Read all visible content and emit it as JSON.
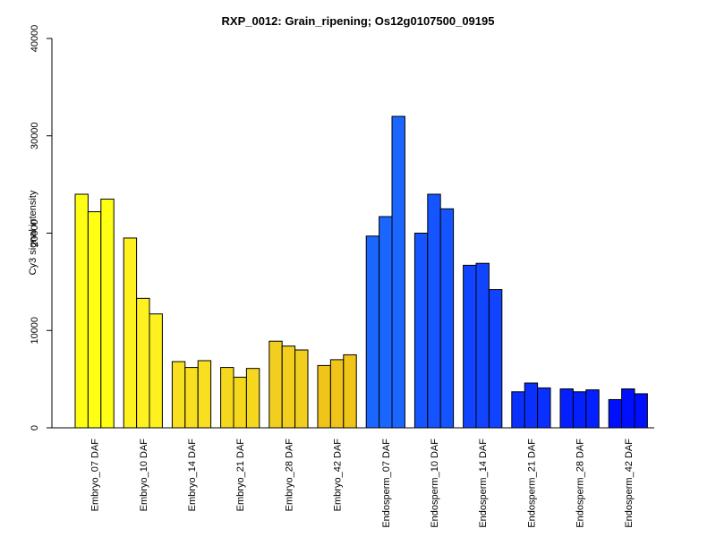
{
  "chart_data": {
    "type": "bar",
    "title": "RXP_0012: Grain_ripening; Os12g0107500_09195",
    "xlabel": "",
    "ylabel": "Cy3 signal intensity",
    "ylim": [
      0,
      40000
    ],
    "yticks": [
      "0",
      "10000",
      "20000",
      "30000",
      "40000"
    ],
    "grid": false,
    "legend": "none",
    "categories": [
      "Embryo_07 DAF",
      "Embryo_10 DAF",
      "Embryo_14 DAF",
      "Embryo_21 DAF",
      "Embryo_28 DAF",
      "Embryo_42 DAF",
      "Endosperm_07 DAF",
      "Endosperm_10 DAF",
      "Endosperm_14 DAF",
      "Endosperm_21 DAF",
      "Endosperm_28 DAF",
      "Endosperm_42 DAF"
    ],
    "colors": [
      "#ffff14",
      "#fff01f",
      "#f8e020",
      "#f5d81d",
      "#f2ce1f",
      "#f0c418",
      "#1a66ff",
      "#1555ff",
      "#1044ff",
      "#0a30ff",
      "#0520ff",
      "#0010ff"
    ],
    "values": [
      [
        24000,
        22200,
        23500
      ],
      [
        19500,
        13300,
        11700
      ],
      [
        6800,
        6200,
        6900
      ],
      [
        6200,
        5200,
        6100
      ],
      [
        8900,
        8400,
        8000
      ],
      [
        6400,
        7000,
        7500
      ],
      [
        19700,
        21700,
        32000
      ],
      [
        20000,
        24000,
        22500
      ],
      [
        16700,
        16900,
        14200
      ],
      [
        3700,
        4600,
        4100
      ],
      [
        4000,
        3700,
        3900
      ],
      [
        2900,
        4000,
        3500
      ]
    ]
  }
}
